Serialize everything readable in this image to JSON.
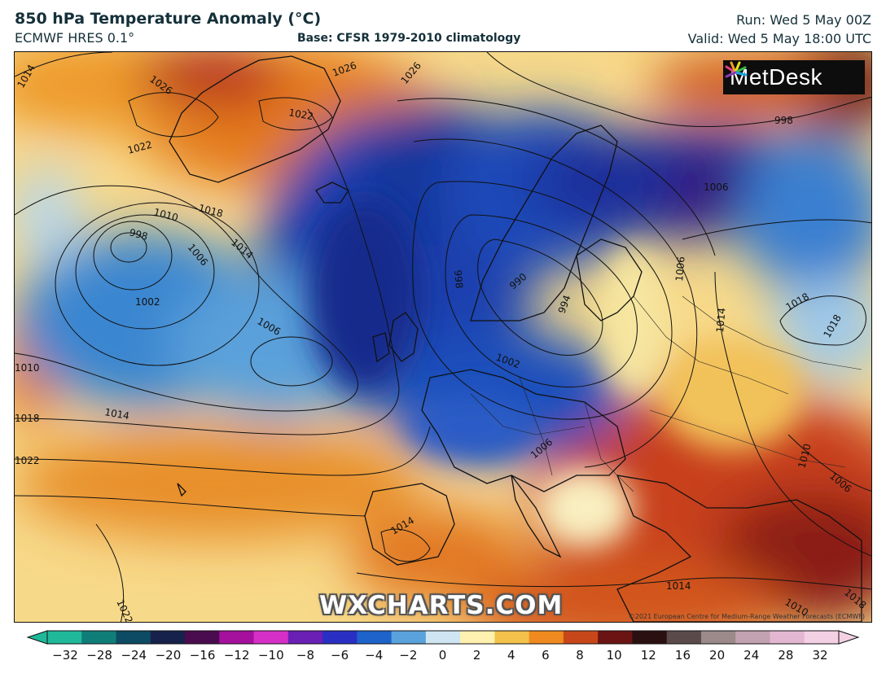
{
  "header": {
    "title": "850 hPa Temperature Anomaly (°C)",
    "model": "ECMWF HRES 0.1°",
    "base": "Base: CFSR 1979-2010 climatology",
    "run": "Run: Wed 5 May 00Z",
    "valid": "Valid: Wed 5 May 18:00 UTC"
  },
  "map": {
    "logo": "MetDesk",
    "watermark": "WXCHARTS.COM",
    "copyright": "©2021 European Centre for Medium-Range Weather Forecasts (ECMWF)",
    "isobar_labels": [
      "1014",
      "1026",
      "1022",
      "1026",
      "1022",
      "1026",
      "1018",
      "1010",
      "998",
      "1006",
      "1014",
      "1002",
      "1006",
      "1010",
      "1018",
      "1014",
      "1022",
      "1022",
      "998",
      "990",
      "994",
      "1002",
      "1006",
      "1006",
      "1018",
      "1014",
      "1018",
      "998",
      "1006",
      "1010",
      "1006",
      "1014",
      "1014",
      "1010",
      "1018"
    ]
  },
  "colorbar": {
    "ticks": [
      "−32",
      "−28",
      "−24",
      "−20",
      "−16",
      "−12",
      "−10",
      "−8",
      "−6",
      "−4",
      "−2",
      "0",
      "2",
      "4",
      "6",
      "8",
      "10",
      "12",
      "16",
      "20",
      "24",
      "28",
      "32"
    ],
    "colors": [
      "#1fb99a",
      "#0f7e78",
      "#0d4a63",
      "#17224a",
      "#4a0c4f",
      "#a5109c",
      "#d52fc7",
      "#6a1fb5",
      "#2a2fc4",
      "#1d63c9",
      "#5aa2dc",
      "#cfe6f2",
      "#fff2b0",
      "#f3c24a",
      "#ee8a1f",
      "#c8471a",
      "#6a1414",
      "#2a1010",
      "#5a4a4a",
      "#9c8a8a",
      "#c2a2b0",
      "#e3b7d1",
      "#f3d0e3"
    ]
  }
}
